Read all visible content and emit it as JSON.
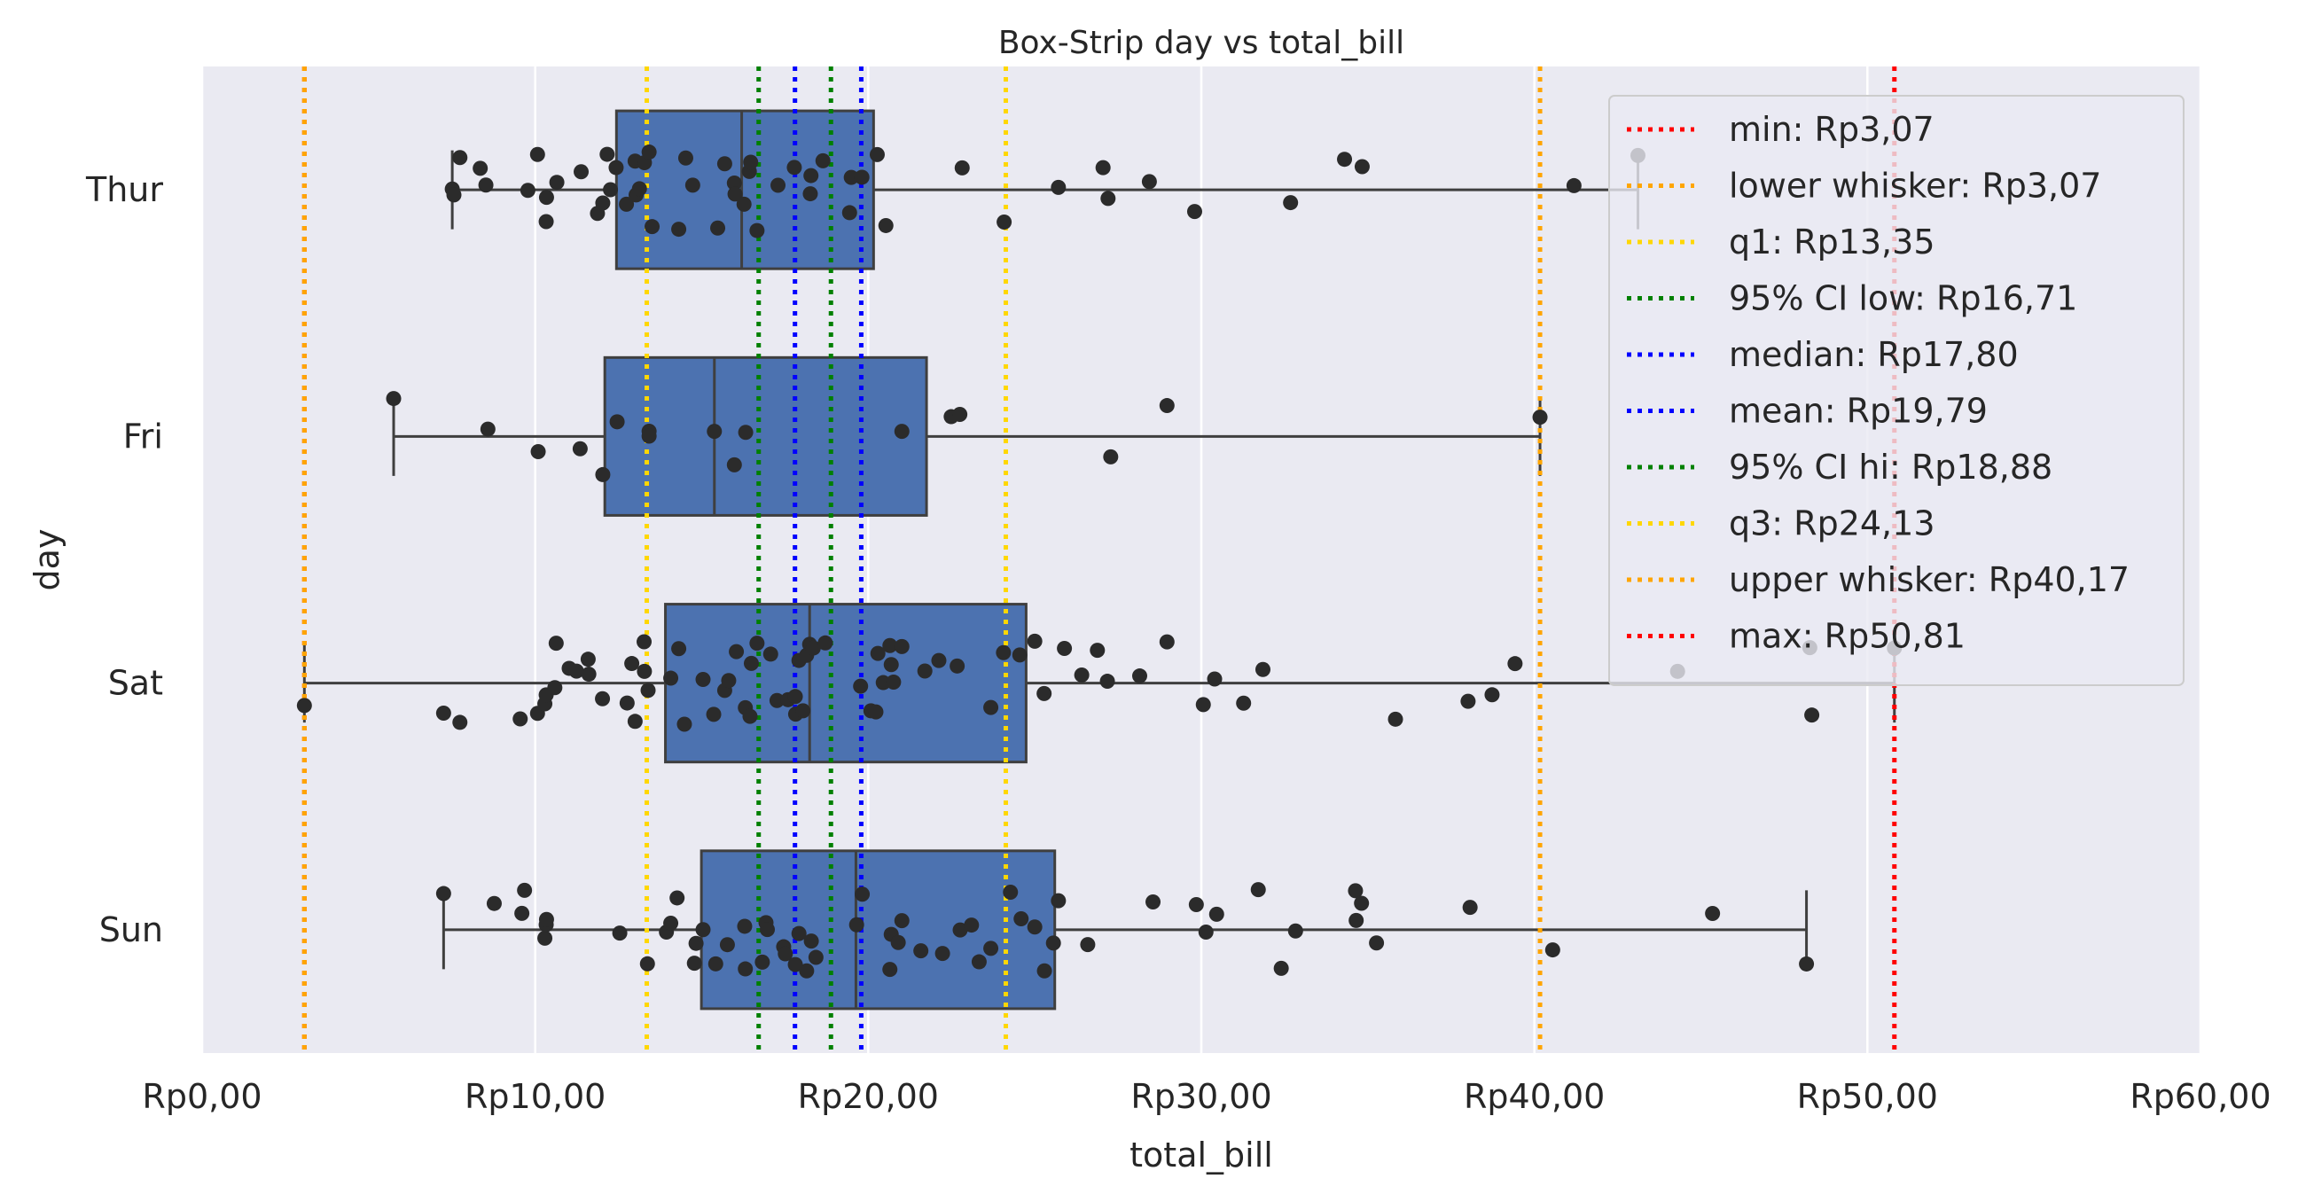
{
  "chart_data": {
    "type": "box",
    "title": "Box-Strip day vs total_bill",
    "xlabel": "total_bill",
    "ylabel": "day",
    "xlim": [
      0,
      60
    ],
    "x_ticks": [
      0,
      10,
      20,
      30,
      40,
      50,
      60
    ],
    "x_tick_labels": [
      "Rp0,00",
      "Rp10,00",
      "Rp20,00",
      "Rp30,00",
      "Rp40,00",
      "Rp50,00",
      "Rp60,00"
    ],
    "categories": [
      "Thur",
      "Fri",
      "Sat",
      "Sun"
    ],
    "grid": true,
    "legend_position": "top-right",
    "colors": {
      "box": "#4c72b0",
      "points": "#2b2b2b",
      "background": "#eaeaf2",
      "grid": "#ffffff"
    },
    "boxes": [
      {
        "category": "Thur",
        "whisker_low": 7.51,
        "q1": 12.44,
        "median": 16.2,
        "q3": 20.16,
        "whisker_high": 43.11
      },
      {
        "category": "Fri",
        "whisker_low": 5.75,
        "q1": 12.09,
        "median": 15.38,
        "q3": 21.75,
        "whisker_high": 40.17
      },
      {
        "category": "Sat",
        "whisker_low": 3.07,
        "q1": 13.91,
        "median": 18.24,
        "q3": 24.74,
        "whisker_high": 50.81
      },
      {
        "category": "Sun",
        "whisker_low": 7.25,
        "q1": 14.99,
        "median": 19.63,
        "q3": 25.6,
        "whisker_high": 48.17
      }
    ],
    "points": [
      {
        "category": "Thur",
        "values": [
          7.51,
          7.56,
          7.74,
          8.35,
          8.52,
          9.78,
          10.07,
          10.33,
          10.34,
          10.65,
          11.38,
          11.87,
          12.03,
          12.16,
          12.26,
          12.43,
          12.74,
          13.0,
          13.03,
          13.13,
          13.28,
          13.42,
          13.51,
          14.31,
          14.52,
          14.73,
          15.48,
          15.69,
          15.98,
          16.0,
          16.27,
          16.43,
          16.47,
          16.66,
          17.29,
          17.78,
          18.26,
          18.28,
          18.64,
          19.44,
          19.49,
          19.81,
          20.27,
          20.53,
          22.82,
          24.08,
          25.71,
          27.05,
          27.2,
          28.44,
          29.8,
          32.68,
          34.3,
          34.83,
          41.19,
          43.11
        ]
      },
      {
        "category": "Fri",
        "values": [
          5.75,
          8.58,
          10.09,
          11.35,
          12.03,
          12.46,
          13.42,
          13.42,
          15.38,
          15.98,
          16.32,
          21.01,
          22.49,
          22.75,
          27.28,
          28.97,
          40.17
        ]
      },
      {
        "category": "Sat",
        "values": [
          3.07,
          7.25,
          7.74,
          9.55,
          10.07,
          10.29,
          10.33,
          10.59,
          10.63,
          11.02,
          11.24,
          11.59,
          11.61,
          12.02,
          12.76,
          12.9,
          13.0,
          13.27,
          13.28,
          13.39,
          14.07,
          14.31,
          14.48,
          15.04,
          15.36,
          15.69,
          15.81,
          16.04,
          16.31,
          16.45,
          16.49,
          16.66,
          17.07,
          17.26,
          17.59,
          17.81,
          17.82,
          17.92,
          18.04,
          18.15,
          18.24,
          18.35,
          18.71,
          19.77,
          20.08,
          20.23,
          20.29,
          20.45,
          20.65,
          20.69,
          20.76,
          21.01,
          21.7,
          22.12,
          22.67,
          23.68,
          24.06,
          24.55,
          25.0,
          25.28,
          25.89,
          26.41,
          26.88,
          27.18,
          28.15,
          28.97,
          30.06,
          30.4,
          31.27,
          31.85,
          35.83,
          38.01,
          38.73,
          39.42,
          44.3,
          48.27,
          48.33,
          50.81
        ]
      },
      {
        "category": "Sun",
        "values": [
          7.25,
          8.77,
          9.6,
          9.68,
          10.29,
          10.33,
          10.34,
          12.54,
          13.37,
          13.94,
          14.07,
          14.26,
          14.78,
          14.83,
          15.04,
          15.42,
          15.77,
          16.29,
          16.31,
          16.82,
          16.93,
          16.97,
          17.46,
          17.51,
          17.81,
          17.92,
          18.15,
          18.29,
          18.43,
          19.65,
          19.82,
          20.65,
          20.69,
          20.9,
          21.01,
          21.58,
          22.23,
          22.76,
          23.1,
          23.33,
          23.68,
          24.27,
          24.59,
          25.0,
          25.29,
          25.56,
          25.71,
          26.59,
          28.55,
          29.85,
          30.14,
          30.46,
          31.71,
          32.4,
          32.83,
          34.63,
          34.65,
          34.81,
          35.26,
          38.07,
          40.55,
          45.35,
          48.17
        ]
      }
    ],
    "reference_lines": [
      {
        "label": "min: Rp3,07",
        "value": 3.07,
        "color": "#ff0000"
      },
      {
        "label": "lower whisker: Rp3,07",
        "value": 3.07,
        "color": "#ffa500"
      },
      {
        "label": "q1: Rp13,35",
        "value": 13.35,
        "color": "#ffd700"
      },
      {
        "label": "95% CI low: Rp16,71",
        "value": 16.71,
        "color": "#008000"
      },
      {
        "label": "median: Rp17,80",
        "value": 17.8,
        "color": "#0000ff"
      },
      {
        "label": "mean: Rp19,79",
        "value": 19.79,
        "color": "#0000ff"
      },
      {
        "label": "95% CI hi: Rp18,88",
        "value": 18.88,
        "color": "#008000"
      },
      {
        "label": "q3: Rp24,13",
        "value": 24.13,
        "color": "#ffd700"
      },
      {
        "label": "upper whisker: Rp40,17",
        "value": 40.17,
        "color": "#ffa500"
      },
      {
        "label": "max: Rp50,81",
        "value": 50.81,
        "color": "#ff0000"
      }
    ]
  }
}
